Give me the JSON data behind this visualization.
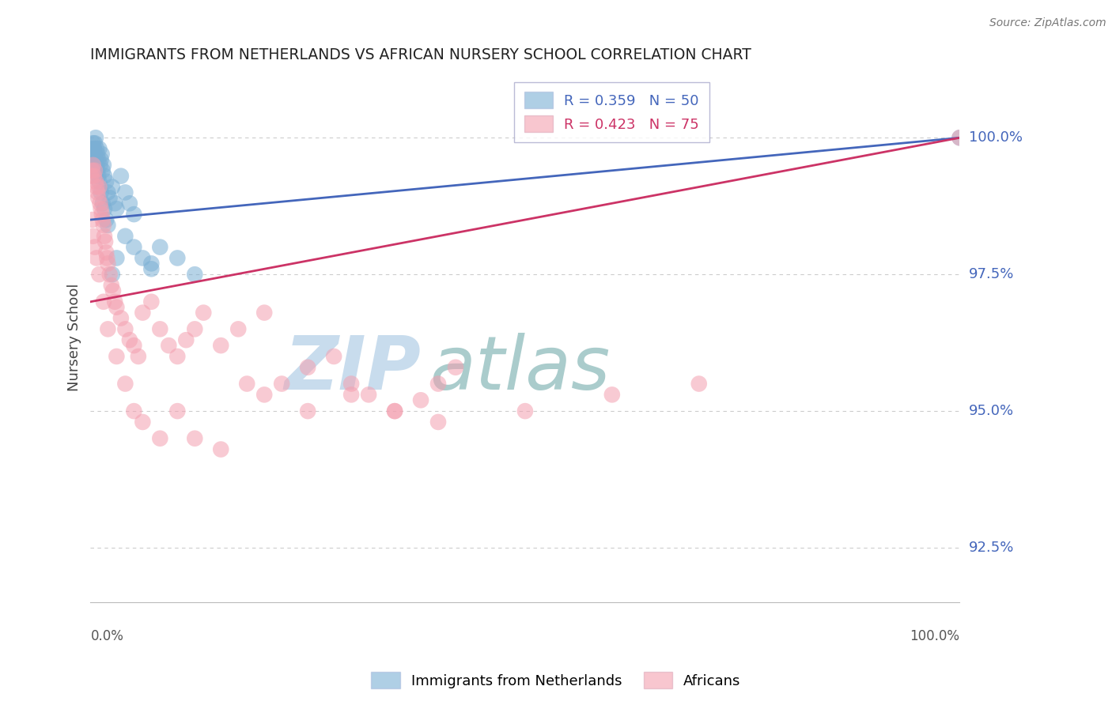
{
  "title": "IMMIGRANTS FROM NETHERLANDS VS AFRICAN NURSERY SCHOOL CORRELATION CHART",
  "source_text": "Source: ZipAtlas.com",
  "ylabel": "Nursery School",
  "x_label_bottom_left": "0.0%",
  "x_label_bottom_right": "100.0%",
  "legend1_label": "Immigrants from Netherlands",
  "legend2_label": "Africans",
  "R1": 0.359,
  "N1": 50,
  "R2": 0.423,
  "N2": 75,
  "yticks": [
    92.5,
    95.0,
    97.5,
    100.0
  ],
  "ytick_labels": [
    "92.5%",
    "95.0%",
    "97.5%",
    "100.0%"
  ],
  "xlim": [
    0.0,
    100.0
  ],
  "ylim": [
    91.5,
    101.2
  ],
  "blue_color": "#7BAFD4",
  "pink_color": "#F4A0B0",
  "blue_line_color": "#4466BB",
  "pink_line_color": "#CC3366",
  "title_color": "#222222",
  "axis_label_color": "#444444",
  "right_tick_color": "#4466BB",
  "grid_color": "#CCCCCC",
  "watermark_zip_color": "#C8DCED",
  "watermark_atlas_color": "#AACCCC",
  "watermark_text_zip": "ZIP",
  "watermark_text_atlas": "atlas",
  "blue_x": [
    0.1,
    0.2,
    0.3,
    0.4,
    0.5,
    0.6,
    0.7,
    0.8,
    0.9,
    1.0,
    1.1,
    1.2,
    1.3,
    1.4,
    1.5,
    1.6,
    1.8,
    2.0,
    2.2,
    2.5,
    2.8,
    3.0,
    3.5,
    4.0,
    4.5,
    5.0,
    6.0,
    7.0,
    8.0,
    10.0,
    0.3,
    0.4,
    0.5,
    0.6,
    0.7,
    0.8,
    0.9,
    1.0,
    1.2,
    1.4,
    1.6,
    1.8,
    2.0,
    2.5,
    3.0,
    4.0,
    5.0,
    7.0,
    12.0,
    100.0
  ],
  "blue_y": [
    99.7,
    99.8,
    99.9,
    99.8,
    99.9,
    100.0,
    99.8,
    99.7,
    99.6,
    99.8,
    99.5,
    99.6,
    99.7,
    99.4,
    99.5,
    99.3,
    99.2,
    99.0,
    98.9,
    99.1,
    98.8,
    98.7,
    99.3,
    99.0,
    98.8,
    98.6,
    97.8,
    97.6,
    98.0,
    97.8,
    99.6,
    99.5,
    99.7,
    99.6,
    99.5,
    99.4,
    99.3,
    99.2,
    99.0,
    98.8,
    98.7,
    98.5,
    98.4,
    97.5,
    97.8,
    98.2,
    98.0,
    97.7,
    97.5,
    100.0
  ],
  "pink_x": [
    0.1,
    0.2,
    0.3,
    0.4,
    0.5,
    0.6,
    0.7,
    0.8,
    0.9,
    1.0,
    1.1,
    1.2,
    1.3,
    1.4,
    1.5,
    1.6,
    1.7,
    1.8,
    1.9,
    2.0,
    2.2,
    2.4,
    2.6,
    2.8,
    3.0,
    3.5,
    4.0,
    4.5,
    5.0,
    5.5,
    6.0,
    7.0,
    8.0,
    9.0,
    10.0,
    11.0,
    12.0,
    13.0,
    15.0,
    17.0,
    20.0,
    22.0,
    25.0,
    28.0,
    30.0,
    32.0,
    35.0,
    38.0,
    40.0,
    42.0,
    0.2,
    0.3,
    0.5,
    0.7,
    1.0,
    1.5,
    2.0,
    3.0,
    4.0,
    5.0,
    6.0,
    8.0,
    10.0,
    12.0,
    15.0,
    18.0,
    20.0,
    25.0,
    30.0,
    35.0,
    40.0,
    50.0,
    60.0,
    70.0,
    100.0
  ],
  "pink_y": [
    99.3,
    99.4,
    99.5,
    99.3,
    99.4,
    99.2,
    99.1,
    99.0,
    98.9,
    99.1,
    98.8,
    98.7,
    98.6,
    98.5,
    98.4,
    98.2,
    98.1,
    97.9,
    97.8,
    97.7,
    97.5,
    97.3,
    97.2,
    97.0,
    96.9,
    96.7,
    96.5,
    96.3,
    96.2,
    96.0,
    96.8,
    97.0,
    96.5,
    96.2,
    96.0,
    96.3,
    96.5,
    96.8,
    96.2,
    96.5,
    96.8,
    95.5,
    95.8,
    96.0,
    95.5,
    95.3,
    95.0,
    95.2,
    95.5,
    95.8,
    98.5,
    98.2,
    98.0,
    97.8,
    97.5,
    97.0,
    96.5,
    96.0,
    95.5,
    95.0,
    94.8,
    94.5,
    95.0,
    94.5,
    94.3,
    95.5,
    95.3,
    95.0,
    95.3,
    95.0,
    94.8,
    95.0,
    95.3,
    95.5,
    100.0
  ]
}
